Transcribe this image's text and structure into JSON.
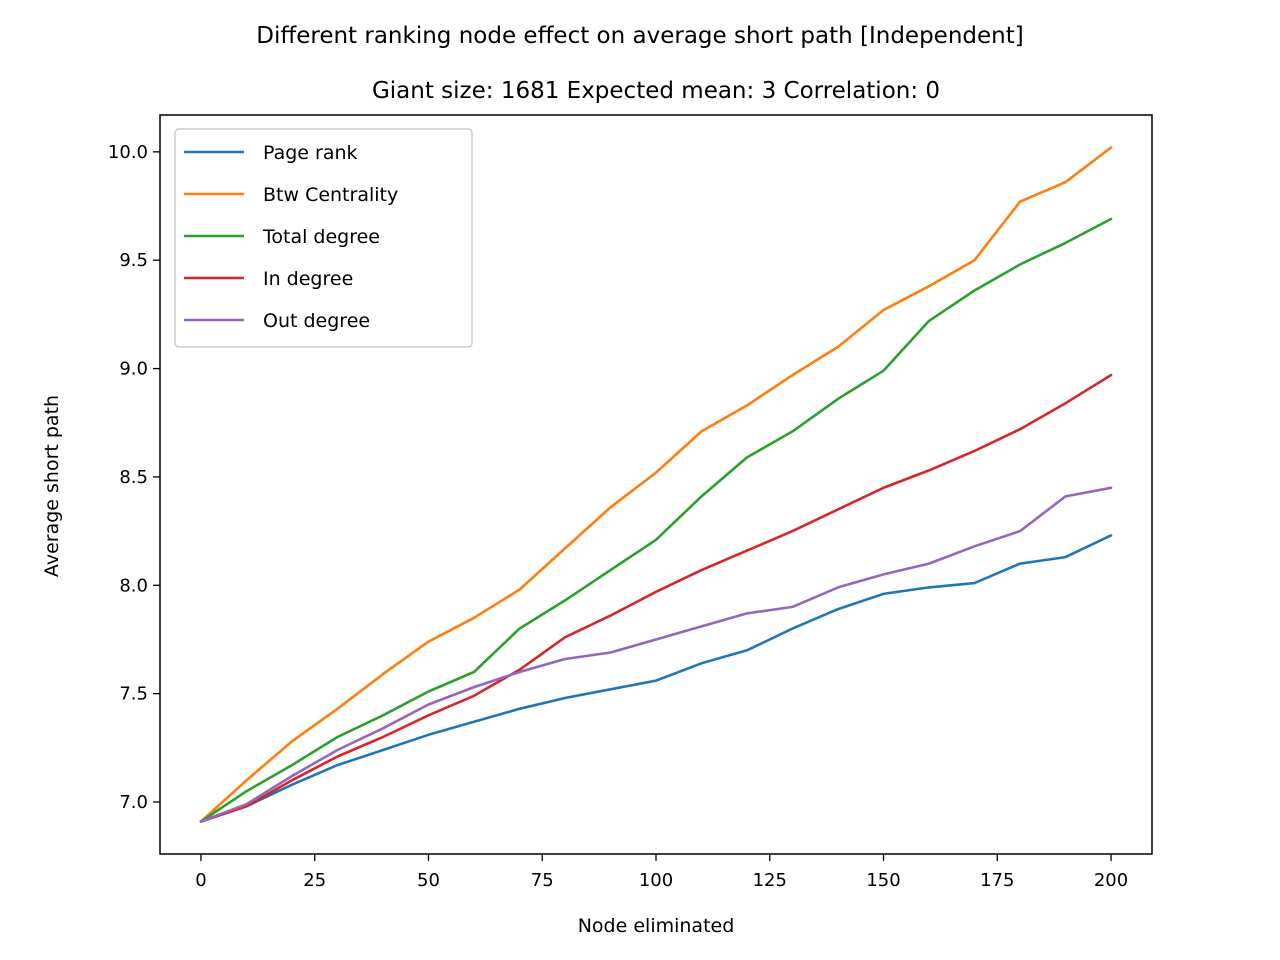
{
  "chart_data": {
    "type": "line",
    "title": "Different ranking node effect on average short path [Independent]",
    "subtitle": "Giant size: 1681  Expected mean: 3  Correlation: 0",
    "xlabel": "Node eliminated",
    "ylabel": "Average short path",
    "xlim": [
      -9,
      209
    ],
    "ylim": [
      6.76,
      10.17
    ],
    "xticks": [
      0,
      25,
      50,
      75,
      100,
      125,
      150,
      175,
      200
    ],
    "xtick_labels": [
      "0",
      "25",
      "50",
      "75",
      "100",
      "125",
      "150",
      "175",
      "200"
    ],
    "yticks": [
      7.0,
      7.5,
      8.0,
      8.5,
      9.0,
      9.5,
      10.0
    ],
    "ytick_labels": [
      "7.0",
      "7.5",
      "8.0",
      "8.5",
      "9.0",
      "9.5",
      "10.0"
    ],
    "legend_position": "upper-left",
    "grid": false,
    "x": [
      0,
      10,
      20,
      30,
      40,
      50,
      60,
      70,
      80,
      90,
      100,
      110,
      120,
      130,
      140,
      150,
      160,
      170,
      180,
      190,
      200
    ],
    "series": [
      {
        "name": "Page rank",
        "color": "#1f77b4",
        "values": [
          6.91,
          6.98,
          7.08,
          7.17,
          7.24,
          7.31,
          7.37,
          7.43,
          7.48,
          7.52,
          7.56,
          7.64,
          7.7,
          7.8,
          7.89,
          7.96,
          7.99,
          8.01,
          8.1,
          8.13,
          8.23
        ]
      },
      {
        "name": "Btw Centrality",
        "color": "#ff7f0e",
        "values": [
          6.91,
          7.1,
          7.28,
          7.43,
          7.59,
          7.74,
          7.85,
          7.98,
          8.17,
          8.36,
          8.52,
          8.71,
          8.83,
          8.97,
          9.1,
          9.27,
          9.38,
          9.5,
          9.77,
          9.86,
          10.02
        ]
      },
      {
        "name": "Total degree",
        "color": "#2ca02c",
        "values": [
          6.91,
          7.05,
          7.17,
          7.3,
          7.4,
          7.51,
          7.6,
          7.8,
          7.93,
          8.07,
          8.21,
          8.41,
          8.59,
          8.71,
          8.86,
          8.99,
          9.22,
          9.36,
          9.48,
          9.58,
          9.69
        ]
      },
      {
        "name": "In degree",
        "color": "#d62728",
        "values": [
          6.91,
          6.98,
          7.1,
          7.21,
          7.3,
          7.4,
          7.49,
          7.61,
          7.76,
          7.86,
          7.97,
          8.07,
          8.16,
          8.25,
          8.35,
          8.45,
          8.53,
          8.62,
          8.72,
          8.84,
          8.97
        ]
      },
      {
        "name": "Out degree",
        "color": "#9467bd",
        "values": [
          6.91,
          6.99,
          7.12,
          7.24,
          7.34,
          7.45,
          7.53,
          7.6,
          7.66,
          7.69,
          7.75,
          7.81,
          7.87,
          7.9,
          7.99,
          8.05,
          8.1,
          8.18,
          8.25,
          8.41,
          8.45
        ]
      }
    ]
  }
}
